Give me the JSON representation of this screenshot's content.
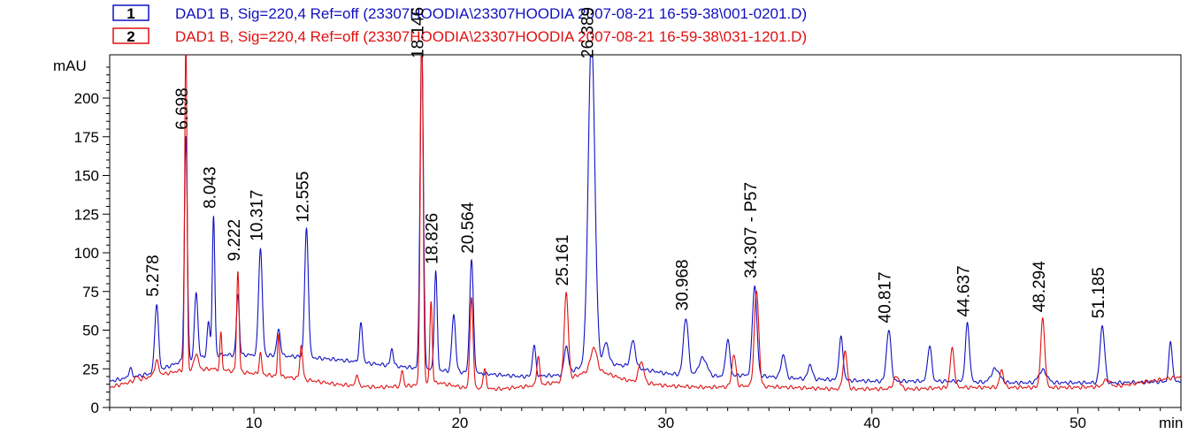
{
  "chart_data": {
    "type": "line",
    "title": "",
    "xlabel": "min",
    "ylabel": "mAU",
    "xlim": [
      3,
      55
    ],
    "ylim": [
      0,
      228
    ],
    "x_ticks": [
      10,
      20,
      30,
      40,
      50
    ],
    "y_ticks": [
      0,
      25,
      50,
      75,
      100,
      125,
      150,
      175,
      200
    ],
    "legend_position": "top",
    "series": [
      {
        "name": "DAD1 B, Sig=220,4 Ref=off (23307HOODIA\\23307HOODIA 2007-08-21 16-59-38\\001-0201.D)",
        "legend_number": "1",
        "color": "#1010c0",
        "baseline": [
          [
            3,
            17
          ],
          [
            5,
            22
          ],
          [
            6.5,
            30
          ],
          [
            8,
            34
          ],
          [
            10,
            34
          ],
          [
            12,
            33
          ],
          [
            14,
            31
          ],
          [
            16,
            28
          ],
          [
            17.5,
            26
          ],
          [
            19,
            24
          ],
          [
            21,
            22
          ],
          [
            23,
            20
          ],
          [
            25,
            21
          ],
          [
            26.5,
            30
          ],
          [
            28,
            27
          ],
          [
            30,
            22
          ],
          [
            32,
            20
          ],
          [
            34,
            21
          ],
          [
            36,
            19
          ],
          [
            38,
            18
          ],
          [
            40,
            17
          ],
          [
            42,
            17
          ],
          [
            44,
            17
          ],
          [
            46,
            16
          ],
          [
            48,
            16
          ],
          [
            50,
            16
          ],
          [
            52,
            16
          ],
          [
            55,
            17
          ]
        ],
        "peaks": [
          [
            4.0,
            25,
            0.08
          ],
          [
            5.278,
            67,
            0.09
          ],
          [
            6.698,
            175,
            0.07
          ],
          [
            7.2,
            75,
            0.08
          ],
          [
            7.8,
            55,
            0.07
          ],
          [
            8.043,
            124,
            0.06
          ],
          [
            9.222,
            73,
            0.07
          ],
          [
            10.317,
            103,
            0.09
          ],
          [
            11.2,
            50,
            0.09
          ],
          [
            12.555,
            115,
            0.09
          ],
          [
            15.2,
            54,
            0.08
          ],
          [
            16.7,
            38,
            0.07
          ],
          [
            18.146,
            240,
            0.08
          ],
          [
            18.826,
            88,
            0.07
          ],
          [
            19.7,
            60,
            0.09
          ],
          [
            20.564,
            95,
            0.09
          ],
          [
            23.6,
            40,
            0.08
          ],
          [
            25.161,
            40,
            0.1
          ],
          [
            26.389,
            240,
            0.16
          ],
          [
            27.1,
            42,
            0.12
          ],
          [
            28.4,
            43,
            0.12
          ],
          [
            30.968,
            58,
            0.12
          ],
          [
            31.8,
            32,
            0.2
          ],
          [
            33.0,
            44,
            0.1
          ],
          [
            34.307,
            79,
            0.11
          ],
          [
            35.7,
            34,
            0.11
          ],
          [
            37.0,
            28,
            0.1
          ],
          [
            38.5,
            45,
            0.1
          ],
          [
            40.817,
            50,
            0.11
          ],
          [
            42.8,
            40,
            0.1
          ],
          [
            44.637,
            54,
            0.1
          ],
          [
            46.0,
            25,
            0.2
          ],
          [
            48.294,
            24,
            0.2
          ],
          [
            51.185,
            53,
            0.11
          ],
          [
            54.5,
            43,
            0.08
          ]
        ]
      },
      {
        "name": "DAD1 B, Sig=220,4 Ref=off (23307HOODIA\\23307HOODIA 2007-08-21 16-59-38\\031-1201.D)",
        "legend_number": "2",
        "color": "#e01010",
        "baseline": [
          [
            3,
            13
          ],
          [
            5,
            20
          ],
          [
            6.5,
            24
          ],
          [
            8,
            25
          ],
          [
            10,
            22
          ],
          [
            12,
            19
          ],
          [
            14,
            15
          ],
          [
            16,
            13
          ],
          [
            17.5,
            14
          ],
          [
            19,
            16
          ],
          [
            20.5,
            12
          ],
          [
            22,
            12
          ],
          [
            23.5,
            14
          ],
          [
            25,
            17
          ],
          [
            26.5,
            25
          ],
          [
            28,
            18
          ],
          [
            30,
            14
          ],
          [
            32,
            13
          ],
          [
            34,
            14
          ],
          [
            36,
            13
          ],
          [
            38,
            12
          ],
          [
            40,
            12
          ],
          [
            42,
            12
          ],
          [
            44,
            13
          ],
          [
            46,
            13
          ],
          [
            48,
            13
          ],
          [
            50,
            13
          ],
          [
            52,
            14
          ],
          [
            55,
            20
          ]
        ],
        "peaks": [
          [
            4.3,
            20,
            0.08
          ],
          [
            5.278,
            30,
            0.1
          ],
          [
            6.698,
            240,
            0.055
          ],
          [
            7.2,
            35,
            0.1
          ],
          [
            8.4,
            48,
            0.05
          ],
          [
            9.222,
            88,
            0.06
          ],
          [
            10.317,
            35,
            0.06
          ],
          [
            11.2,
            47,
            0.05
          ],
          [
            12.3,
            40,
            0.07
          ],
          [
            15.0,
            22,
            0.06
          ],
          [
            17.2,
            24,
            0.06
          ],
          [
            18.146,
            240,
            0.07
          ],
          [
            18.6,
            68,
            0.06
          ],
          [
            20.564,
            70,
            0.08
          ],
          [
            21.2,
            24,
            0.08
          ],
          [
            23.8,
            33,
            0.07
          ],
          [
            25.161,
            74,
            0.1
          ],
          [
            26.5,
            39,
            0.15
          ],
          [
            28.8,
            30,
            0.12
          ],
          [
            33.3,
            34,
            0.1
          ],
          [
            34.4,
            75,
            0.11
          ],
          [
            38.7,
            36,
            0.1
          ],
          [
            41.2,
            20,
            0.15
          ],
          [
            43.9,
            38,
            0.1
          ],
          [
            46.3,
            24,
            0.1
          ],
          [
            48.294,
            57,
            0.1
          ],
          [
            51.4,
            18,
            0.15
          ]
        ]
      }
    ],
    "peak_labels": [
      {
        "text": "5.278",
        "x": 5.278,
        "y": 67
      },
      {
        "text": "6.698",
        "x": 6.698,
        "y": 175
      },
      {
        "text": "8.043",
        "x": 8.043,
        "y": 124
      },
      {
        "text": "9.222",
        "x": 9.222,
        "y": 90
      },
      {
        "text": "10.317",
        "x": 10.317,
        "y": 103
      },
      {
        "text": "12.555",
        "x": 12.555,
        "y": 115
      },
      {
        "text": "18.146",
        "x": 18.146,
        "y": 228
      },
      {
        "text": "18.826",
        "x": 18.826,
        "y": 88
      },
      {
        "text": "20.564",
        "x": 20.564,
        "y": 95
      },
      {
        "text": "25.161",
        "x": 25.161,
        "y": 74
      },
      {
        "text": "26.389",
        "x": 26.389,
        "y": 228
      },
      {
        "text": "30.968",
        "x": 30.968,
        "y": 58
      },
      {
        "text": "34.307 - P57",
        "x": 34.307,
        "y": 79
      },
      {
        "text": "40.817",
        "x": 40.817,
        "y": 50
      },
      {
        "text": "44.637",
        "x": 44.637,
        "y": 54
      },
      {
        "text": "48.294",
        "x": 48.294,
        "y": 57
      },
      {
        "text": "51.185",
        "x": 51.185,
        "y": 53
      }
    ]
  }
}
